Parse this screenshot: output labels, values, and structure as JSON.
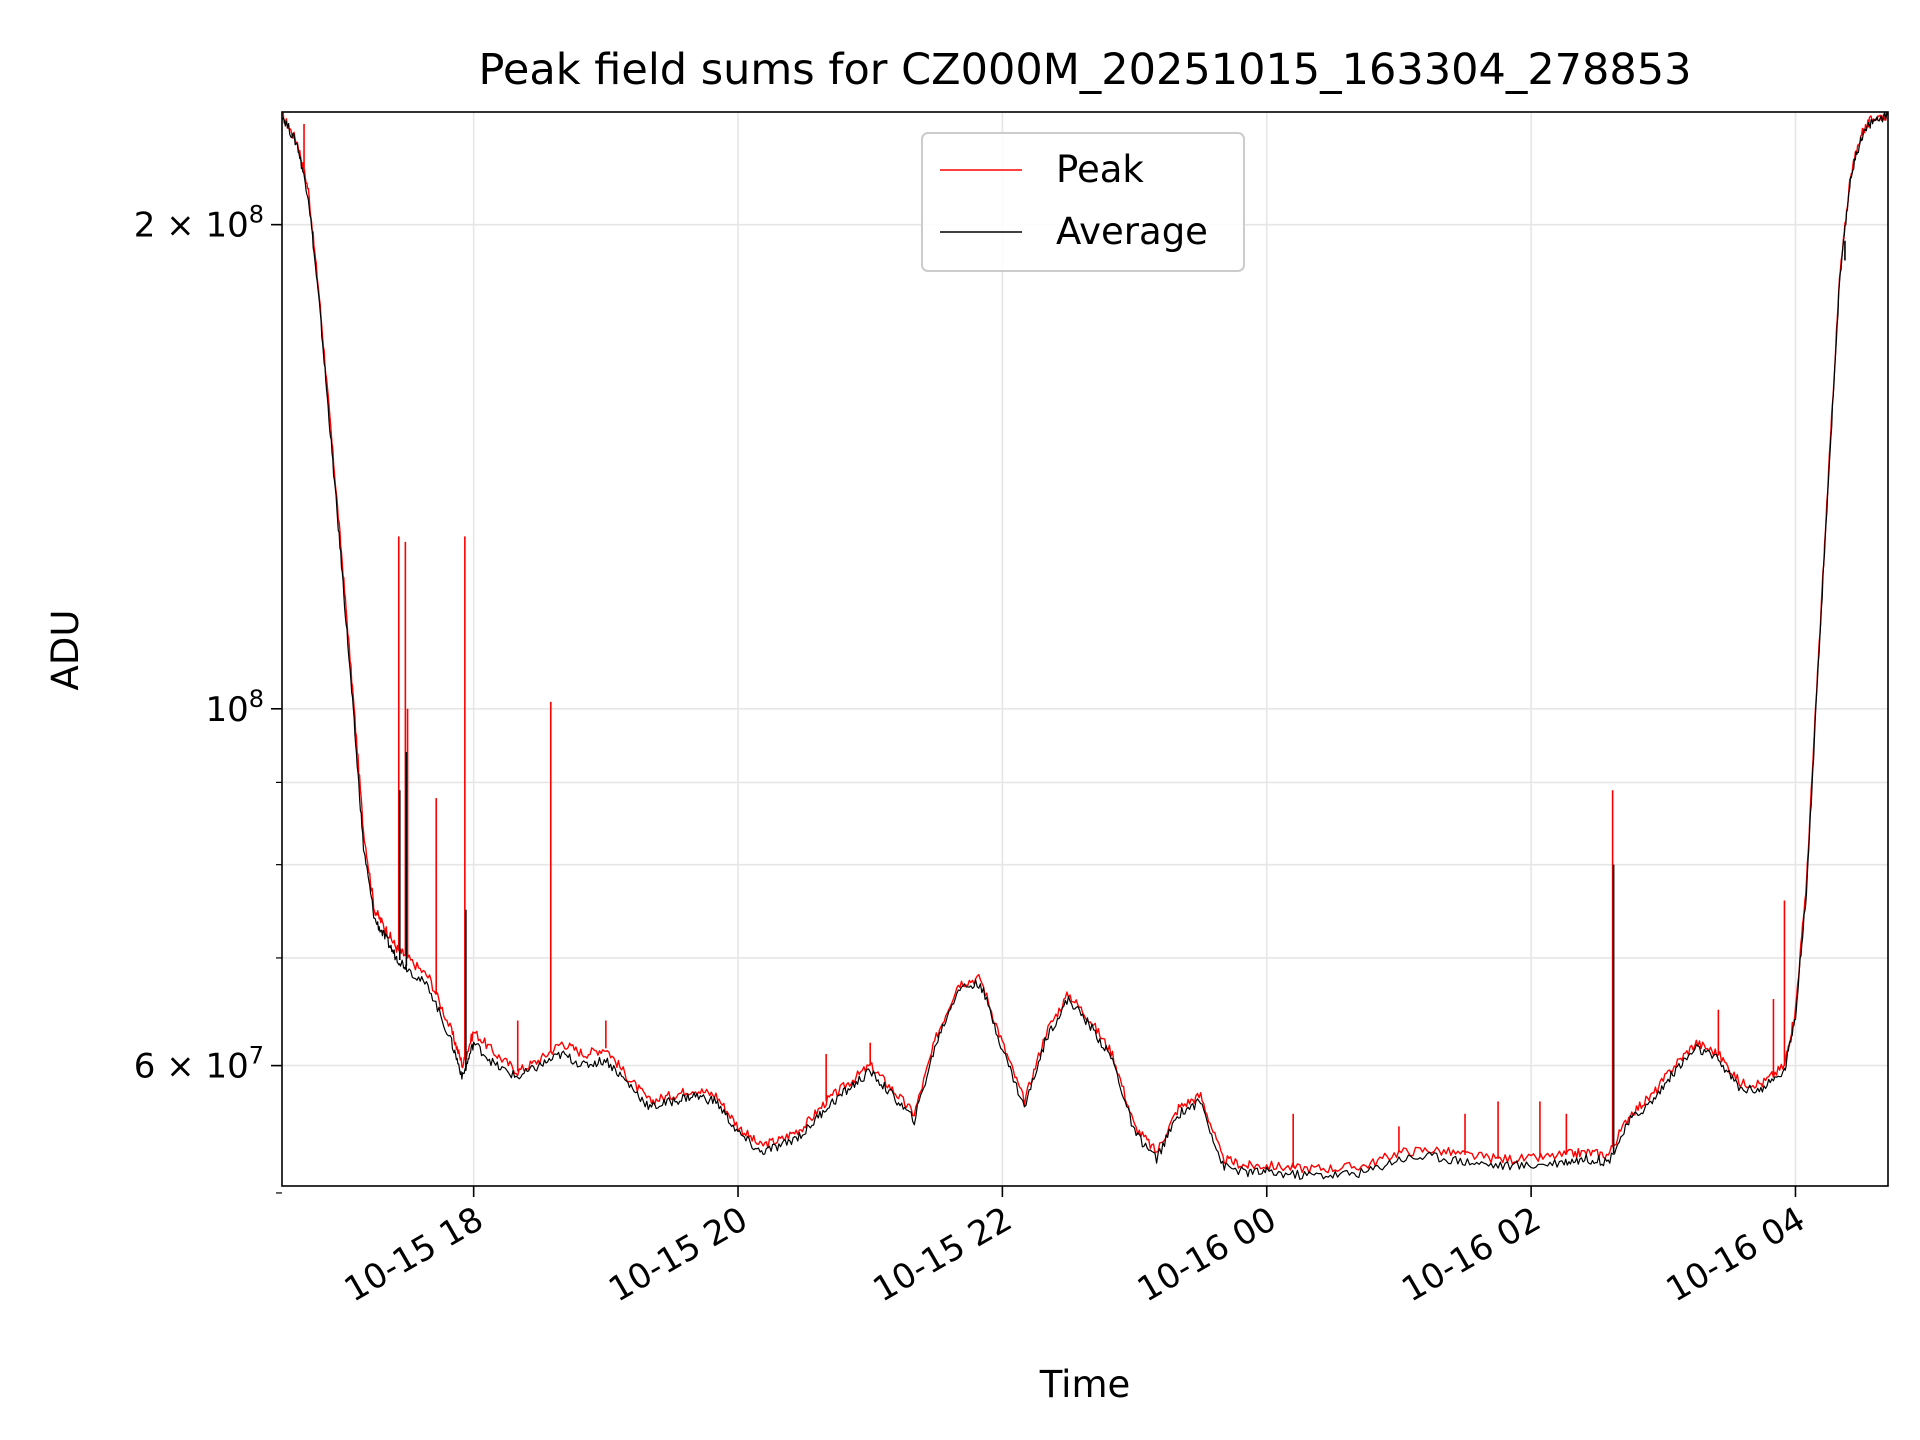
{
  "chart_data": {
    "type": "line",
    "title": "Peak field sums for CZ000M_20251015_163304_278853",
    "xlabel": "Time",
    "ylabel": "ADU",
    "y_scale": "log",
    "ylim": [
      50500000,
      235000000
    ],
    "xlim": [
      "2025-10-15 16:33",
      "2025-10-16 04:42"
    ],
    "grid": true,
    "legend": {
      "placement": "top-center"
    },
    "x_ticks": [
      {
        "value": "2025-10-15 18:00",
        "label": "10-15 18"
      },
      {
        "value": "2025-10-15 20:00",
        "label": "10-15 20"
      },
      {
        "value": "2025-10-15 22:00",
        "label": "10-15 22"
      },
      {
        "value": "2025-10-16 00:00",
        "label": "10-16 00"
      },
      {
        "value": "2025-10-16 02:00",
        "label": "10-16 02"
      },
      {
        "value": "2025-10-16 04:00",
        "label": "10-16 04"
      }
    ],
    "y_major_ticks": [
      {
        "value": 100000000,
        "base": "10",
        "exp": "8"
      },
      {
        "value": 200000000,
        "mant": "2",
        "base": "10",
        "exp": "8"
      },
      {
        "value": 60000000,
        "mant": "6",
        "base": "10",
        "exp": "7"
      }
    ],
    "y_minor_ticks": [
      50000000,
      60000000,
      70000000,
      80000000,
      90000000,
      200000000
    ],
    "y_grid_values": [
      60000000,
      70000000,
      80000000,
      90000000,
      100000000,
      200000000
    ],
    "series": [
      {
        "name": "Peak",
        "color": "#ff0000",
        "x": [
          "2025-10-15 16:33",
          "2025-10-15 16:40",
          "2025-10-15 16:45",
          "2025-10-15 16:50",
          "2025-10-15 16:55",
          "2025-10-15 17:00",
          "2025-10-15 17:05",
          "2025-10-15 17:10",
          "2025-10-15 17:15",
          "2025-10-15 17:20",
          "2025-10-15 17:25",
          "2025-10-15 17:30",
          "2025-10-15 17:40",
          "2025-10-15 17:50",
          "2025-10-15 17:55",
          "2025-10-15 18:00",
          "2025-10-15 18:10",
          "2025-10-15 18:20",
          "2025-10-15 18:30",
          "2025-10-15 18:40",
          "2025-10-15 18:50",
          "2025-10-15 19:00",
          "2025-10-15 19:10",
          "2025-10-15 19:20",
          "2025-10-15 19:30",
          "2025-10-15 19:40",
          "2025-10-15 19:50",
          "2025-10-15 20:00",
          "2025-10-15 20:10",
          "2025-10-15 20:20",
          "2025-10-15 20:30",
          "2025-10-15 20:40",
          "2025-10-15 20:50",
          "2025-10-15 21:00",
          "2025-10-15 21:10",
          "2025-10-15 21:20",
          "2025-10-15 21:30",
          "2025-10-15 21:40",
          "2025-10-15 21:50",
          "2025-10-15 22:00",
          "2025-10-15 22:10",
          "2025-10-15 22:20",
          "2025-10-15 22:30",
          "2025-10-15 22:40",
          "2025-10-15 22:50",
          "2025-10-15 23:00",
          "2025-10-15 23:10",
          "2025-10-15 23:20",
          "2025-10-15 23:30",
          "2025-10-15 23:40",
          "2025-10-15 23:50",
          "2025-10-16 00:00",
          "2025-10-16 00:15",
          "2025-10-16 00:30",
          "2025-10-16 00:45",
          "2025-10-16 01:00",
          "2025-10-16 01:15",
          "2025-10-16 01:30",
          "2025-10-16 01:45",
          "2025-10-16 02:00",
          "2025-10-16 02:15",
          "2025-10-16 02:25",
          "2025-10-16 02:35",
          "2025-10-16 02:45",
          "2025-10-16 02:55",
          "2025-10-16 03:05",
          "2025-10-16 03:15",
          "2025-10-16 03:25",
          "2025-10-16 03:35",
          "2025-10-16 03:45",
          "2025-10-16 03:55",
          "2025-10-16 04:00",
          "2025-10-16 04:05",
          "2025-10-16 04:10",
          "2025-10-16 04:15",
          "2025-10-16 04:20",
          "2025-10-16 04:25",
          "2025-10-16 04:30",
          "2025-10-16 04:35",
          "2025-10-16 04:42"
        ],
        "y": [
          234000000,
          225000000,
          210000000,
          180000000,
          150000000,
          125000000,
          103000000,
          84000000,
          75000000,
          73000000,
          71000000,
          70000000,
          68000000,
          63000000,
          60000000,
          63000000,
          61000000,
          59500000,
          60500000,
          62000000,
          61000000,
          61500000,
          59000000,
          57000000,
          57500000,
          58000000,
          57500000,
          55000000,
          53500000,
          54000000,
          55000000,
          57000000,
          58500000,
          60000000,
          58000000,
          56000000,
          62500000,
          67500000,
          68000000,
          62000000,
          57000000,
          63000000,
          66500000,
          64000000,
          61000000,
          55000000,
          53000000,
          56500000,
          57500000,
          52500000,
          52000000,
          52000000,
          51800000,
          51800000,
          52000000,
          53000000,
          53200000,
          52800000,
          52500000,
          52500000,
          52800000,
          53000000,
          52800000,
          56000000,
          57500000,
          60000000,
          62000000,
          61000000,
          58500000,
          58500000,
          60000000,
          65000000,
          78000000,
          105000000,
          140000000,
          185000000,
          215000000,
          228000000,
          233000000,
          234000000
        ]
      },
      {
        "name": "Average",
        "color": "#000000",
        "x": [
          "2025-10-15 16:33",
          "2025-10-15 16:40",
          "2025-10-15 16:45",
          "2025-10-15 16:50",
          "2025-10-15 16:55",
          "2025-10-15 17:00",
          "2025-10-15 17:05",
          "2025-10-15 17:10",
          "2025-10-15 17:15",
          "2025-10-15 17:20",
          "2025-10-15 17:25",
          "2025-10-15 17:30",
          "2025-10-15 17:40",
          "2025-10-15 17:50",
          "2025-10-15 17:55",
          "2025-10-15 18:00",
          "2025-10-15 18:10",
          "2025-10-15 18:20",
          "2025-10-15 18:30",
          "2025-10-15 18:40",
          "2025-10-15 18:50",
          "2025-10-15 19:00",
          "2025-10-15 19:10",
          "2025-10-15 19:20",
          "2025-10-15 19:30",
          "2025-10-15 19:40",
          "2025-10-15 19:50",
          "2025-10-15 20:00",
          "2025-10-15 20:10",
          "2025-10-15 20:20",
          "2025-10-15 20:30",
          "2025-10-15 20:40",
          "2025-10-15 20:50",
          "2025-10-15 21:00",
          "2025-10-15 21:10",
          "2025-10-15 21:20",
          "2025-10-15 21:30",
          "2025-10-15 21:40",
          "2025-10-15 21:50",
          "2025-10-15 22:00",
          "2025-10-15 22:10",
          "2025-10-15 22:20",
          "2025-10-15 22:30",
          "2025-10-15 22:40",
          "2025-10-15 22:50",
          "2025-10-15 23:00",
          "2025-10-15 23:10",
          "2025-10-15 23:20",
          "2025-10-15 23:30",
          "2025-10-15 23:40",
          "2025-10-15 23:50",
          "2025-10-16 00:00",
          "2025-10-16 00:15",
          "2025-10-16 00:30",
          "2025-10-16 00:45",
          "2025-10-16 01:00",
          "2025-10-16 01:15",
          "2025-10-16 01:30",
          "2025-10-16 01:45",
          "2025-10-16 02:00",
          "2025-10-16 02:15",
          "2025-10-16 02:25",
          "2025-10-16 02:35",
          "2025-10-16 02:45",
          "2025-10-16 02:55",
          "2025-10-16 03:05",
          "2025-10-16 03:15",
          "2025-10-16 03:25",
          "2025-10-16 03:35",
          "2025-10-16 03:45",
          "2025-10-16 03:55",
          "2025-10-16 04:00",
          "2025-10-16 04:05",
          "2025-10-16 04:10",
          "2025-10-16 04:15",
          "2025-10-16 04:20",
          "2025-10-16 04:25",
          "2025-10-16 04:30",
          "2025-10-16 04:35",
          "2025-10-16 04:42"
        ],
        "y": [
          234000000,
          224000000,
          208000000,
          178000000,
          148000000,
          123000000,
          101000000,
          82000000,
          74000000,
          72000000,
          70000000,
          69000000,
          67000000,
          62000000,
          59000000,
          62000000,
          60000000,
          59000000,
          60000000,
          61000000,
          60000000,
          60500000,
          58500000,
          56500000,
          57000000,
          57500000,
          57000000,
          54500000,
          53000000,
          53500000,
          54500000,
          56500000,
          58000000,
          59500000,
          57500000,
          55500000,
          62000000,
          67000000,
          67500000,
          61500000,
          56500000,
          62500000,
          66000000,
          63500000,
          60500000,
          54500000,
          52500000,
          56000000,
          57000000,
          52000000,
          51500000,
          51500000,
          51300000,
          51300000,
          51500000,
          52500000,
          52700000,
          52300000,
          52000000,
          52000000,
          52300000,
          52500000,
          52300000,
          55500000,
          57000000,
          59500000,
          61500000,
          60500000,
          58000000,
          58000000,
          59500000,
          64500000,
          77000000,
          104000000,
          139000000,
          184000000,
          214000000,
          227000000,
          232000000,
          234000000
        ]
      }
    ],
    "peak_spikes": [
      {
        "x": "2025-10-15 16:43",
        "y": 231000000
      },
      {
        "x": "2025-10-15 17:26",
        "y": 128000000
      },
      {
        "x": "2025-10-15 17:29",
        "y": 127000000
      },
      {
        "x": "2025-10-15 17:30",
        "y": 100000000
      },
      {
        "x": "2025-10-15 17:43",
        "y": 88000000
      },
      {
        "x": "2025-10-15 17:56",
        "y": 128000000
      },
      {
        "x": "2025-10-15 18:35",
        "y": 101000000
      },
      {
        "x": "2025-10-15 18:20",
        "y": 64000000
      },
      {
        "x": "2025-10-15 19:00",
        "y": 64000000
      },
      {
        "x": "2025-10-15 20:40",
        "y": 61000000
      },
      {
        "x": "2025-10-15 21:00",
        "y": 62000000
      },
      {
        "x": "2025-10-16 00:12",
        "y": 56000000
      },
      {
        "x": "2025-10-16 01:00",
        "y": 55000000
      },
      {
        "x": "2025-10-16 01:30",
        "y": 56000000
      },
      {
        "x": "2025-10-16 01:45",
        "y": 57000000
      },
      {
        "x": "2025-10-16 02:04",
        "y": 57000000
      },
      {
        "x": "2025-10-16 02:16",
        "y": 56000000
      },
      {
        "x": "2025-10-16 02:37",
        "y": 89000000
      },
      {
        "x": "2025-10-16 03:25",
        "y": 65000000
      },
      {
        "x": "2025-10-16 03:50",
        "y": 66000000
      },
      {
        "x": "2025-10-16 03:55",
        "y": 76000000
      },
      {
        "x": "2025-10-16 04:22",
        "y": 196000000
      }
    ],
    "average_spikes": [
      {
        "x": "2025-10-15 17:26",
        "y": 89000000
      },
      {
        "x": "2025-10-15 17:29",
        "y": 94000000
      },
      {
        "x": "2025-10-15 17:56",
        "y": 75000000
      },
      {
        "x": "2025-10-16 02:37",
        "y": 80000000
      },
      {
        "x": "2025-10-16 04:22",
        "y": 190000000
      }
    ]
  }
}
